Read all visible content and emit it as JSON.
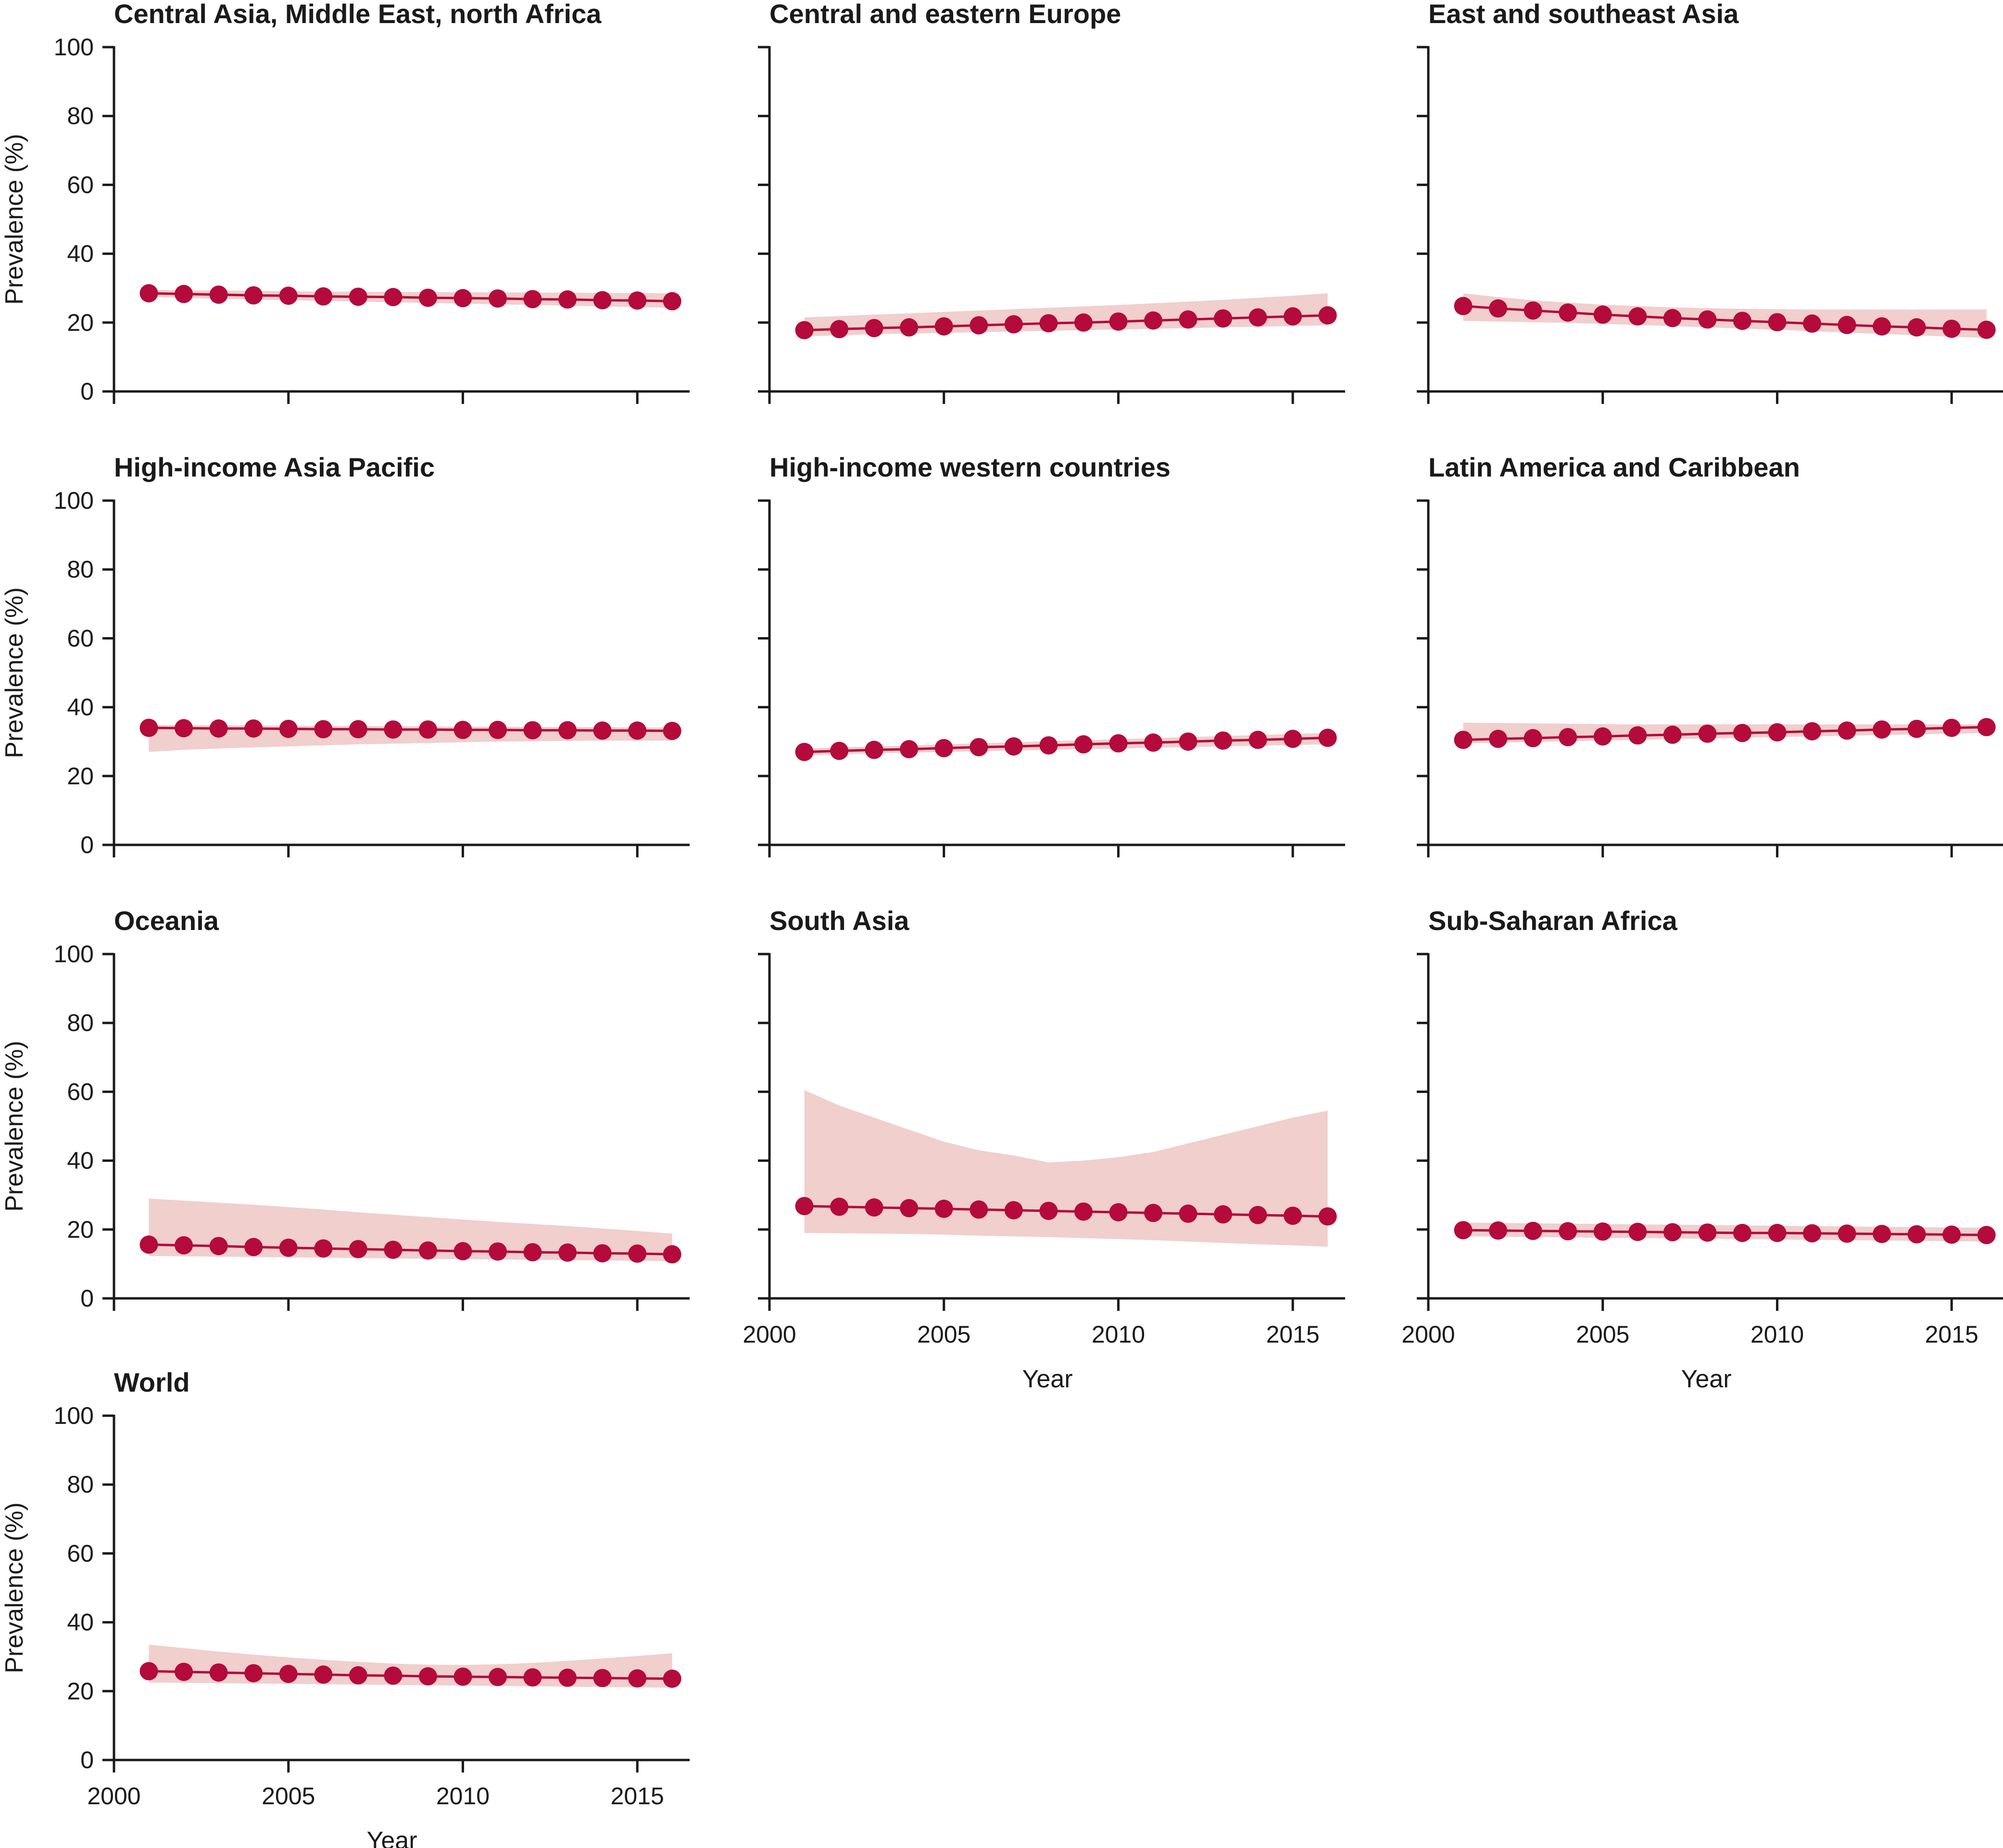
{
  "colors": {
    "series": "#b40a3c",
    "band": "#f0cfcd",
    "axis": "#1a1a1a"
  },
  "chart_data": [
    {
      "type": "line",
      "title": "Central Asia, Middle East, north Africa",
      "ylabel": "Prevalence (%)",
      "xlabel": "",
      "xlim": [
        2000,
        2016.5
      ],
      "ylim": [
        0,
        100
      ],
      "yticks": [
        "0",
        "20",
        "40",
        "60",
        "80",
        "100"
      ],
      "xticks": [],
      "x": [
        2001,
        2002,
        2003,
        2004,
        2005,
        2006,
        2007,
        2008,
        2009,
        2010,
        2011,
        2012,
        2013,
        2014,
        2015,
        2016
      ],
      "values": [
        28.5,
        28.3,
        28.1,
        27.9,
        27.8,
        27.6,
        27.5,
        27.4,
        27.2,
        27.1,
        27.0,
        26.8,
        26.7,
        26.5,
        26.4,
        26.2
      ],
      "band_upper": [
        29.5,
        29.4,
        29.3,
        29.2,
        29.1,
        29.0,
        29.0,
        28.9,
        28.9,
        28.8,
        28.8,
        28.7,
        28.7,
        28.6,
        28.6,
        28.5
      ],
      "band_lower": [
        27.5,
        27.2,
        26.9,
        26.7,
        26.5,
        26.3,
        26.1,
        25.9,
        25.7,
        25.5,
        25.3,
        25.1,
        24.9,
        24.7,
        24.5,
        24.3
      ]
    },
    {
      "type": "line",
      "title": "Central and eastern Europe",
      "ylabel": "",
      "xlabel": "",
      "xlim": [
        2000,
        2016.5
      ],
      "ylim": [
        0,
        100
      ],
      "yticks": [],
      "xticks": [],
      "x": [
        2001,
        2002,
        2003,
        2004,
        2005,
        2006,
        2007,
        2008,
        2009,
        2010,
        2011,
        2012,
        2013,
        2014,
        2015,
        2016
      ],
      "values": [
        17.8,
        18.1,
        18.4,
        18.6,
        18.9,
        19.2,
        19.5,
        19.8,
        20.0,
        20.3,
        20.6,
        20.9,
        21.2,
        21.5,
        21.8,
        22.1
      ],
      "band_upper": [
        21.5,
        21.9,
        22.3,
        22.7,
        23.1,
        23.5,
        23.9,
        24.3,
        24.7,
        25.1,
        25.6,
        26.1,
        26.6,
        27.2,
        27.8,
        28.5
      ],
      "band_lower": [
        16.0,
        16.3,
        16.6,
        16.8,
        17.0,
        17.2,
        17.4,
        17.6,
        17.8,
        18.0,
        18.2,
        18.4,
        18.6,
        18.8,
        19.0,
        19.2
      ]
    },
    {
      "type": "line",
      "title": "East and southeast Asia",
      "ylabel": "",
      "xlabel": "",
      "xlim": [
        2000,
        2016.5
      ],
      "ylim": [
        0,
        100
      ],
      "yticks": [],
      "xticks": [],
      "x": [
        2001,
        2002,
        2003,
        2004,
        2005,
        2006,
        2007,
        2008,
        2009,
        2010,
        2011,
        2012,
        2013,
        2014,
        2015,
        2016
      ],
      "values": [
        24.8,
        24.1,
        23.5,
        22.9,
        22.3,
        21.8,
        21.3,
        20.9,
        20.5,
        20.1,
        19.7,
        19.3,
        18.9,
        18.6,
        18.2,
        17.9
      ],
      "band_upper": [
        28.5,
        27.4,
        26.5,
        25.8,
        25.2,
        24.8,
        24.4,
        24.2,
        24.0,
        23.9,
        23.8,
        23.8,
        23.8,
        23.8,
        23.8,
        23.8
      ],
      "band_lower": [
        20.5,
        20.3,
        20.1,
        19.9,
        19.6,
        19.3,
        19.0,
        18.6,
        18.3,
        17.9,
        17.5,
        17.1,
        16.7,
        16.3,
        15.9,
        15.5
      ]
    },
    {
      "type": "line",
      "title": "High-income Asia Pacific",
      "ylabel": "Prevalence (%)",
      "xlabel": "",
      "xlim": [
        2000,
        2016.5
      ],
      "ylim": [
        0,
        100
      ],
      "yticks": [
        "0",
        "20",
        "40",
        "60",
        "80",
        "100"
      ],
      "xticks": [],
      "x": [
        2001,
        2002,
        2003,
        2004,
        2005,
        2006,
        2007,
        2008,
        2009,
        2010,
        2011,
        2012,
        2013,
        2014,
        2015,
        2016
      ],
      "values": [
        34.0,
        33.9,
        33.8,
        33.8,
        33.7,
        33.6,
        33.6,
        33.5,
        33.5,
        33.4,
        33.4,
        33.3,
        33.3,
        33.2,
        33.2,
        33.1
      ],
      "band_upper": [
        34.8,
        34.8,
        34.7,
        34.7,
        34.6,
        34.6,
        34.5,
        34.5,
        34.4,
        34.4,
        34.3,
        34.3,
        34.2,
        34.2,
        34.1,
        34.1
      ],
      "band_lower": [
        27.0,
        27.6,
        28.0,
        28.3,
        28.6,
        28.9,
        29.2,
        29.4,
        29.6,
        29.8,
        30.0,
        30.1,
        30.2,
        30.3,
        30.3,
        30.3
      ]
    },
    {
      "type": "line",
      "title": "High-income western countries",
      "ylabel": "",
      "xlabel": "",
      "xlim": [
        2000,
        2016.5
      ],
      "ylim": [
        0,
        100
      ],
      "yticks": [],
      "xticks": [],
      "x": [
        2001,
        2002,
        2003,
        2004,
        2005,
        2006,
        2007,
        2008,
        2009,
        2010,
        2011,
        2012,
        2013,
        2014,
        2015,
        2016
      ],
      "values": [
        27.0,
        27.3,
        27.6,
        27.8,
        28.1,
        28.4,
        28.6,
        28.9,
        29.2,
        29.5,
        29.7,
        30.0,
        30.3,
        30.5,
        30.8,
        31.1
      ],
      "band_upper": [
        28.0,
        28.3,
        28.6,
        28.9,
        29.2,
        29.5,
        29.8,
        30.1,
        30.4,
        30.7,
        31.0,
        31.3,
        31.6,
        31.9,
        32.2,
        32.5
      ],
      "band_lower": [
        26.0,
        26.3,
        26.6,
        26.8,
        27.0,
        27.2,
        27.4,
        27.6,
        27.8,
        28.0,
        28.2,
        28.4,
        28.6,
        28.8,
        29.0,
        29.2
      ]
    },
    {
      "type": "line",
      "title": "Latin America and Caribbean",
      "ylabel": "",
      "xlabel": "",
      "xlim": [
        2000,
        2016.5
      ],
      "ylim": [
        0,
        100
      ],
      "yticks": [],
      "xticks": [],
      "x": [
        2001,
        2002,
        2003,
        2004,
        2005,
        2006,
        2007,
        2008,
        2009,
        2010,
        2011,
        2012,
        2013,
        2014,
        2015,
        2016
      ],
      "values": [
        30.5,
        30.8,
        31.0,
        31.3,
        31.5,
        31.8,
        32.0,
        32.3,
        32.5,
        32.7,
        33.0,
        33.2,
        33.5,
        33.7,
        34.0,
        34.2
      ],
      "band_upper": [
        35.5,
        35.4,
        35.3,
        35.2,
        35.1,
        35.0,
        35.0,
        35.0,
        35.0,
        35.0,
        35.0,
        35.0,
        35.0,
        35.0,
        35.0,
        35.0
      ],
      "band_lower": [
        29.5,
        29.7,
        29.9,
        30.1,
        30.3,
        30.5,
        30.7,
        30.9,
        31.1,
        31.3,
        31.5,
        31.7,
        31.9,
        32.1,
        32.3,
        32.5
      ]
    },
    {
      "type": "line",
      "title": "Oceania",
      "ylabel": "Prevalence (%)",
      "xlabel": "",
      "xlim": [
        2000,
        2016.5
      ],
      "ylim": [
        0,
        100
      ],
      "yticks": [
        "0",
        "20",
        "40",
        "60",
        "80",
        "100"
      ],
      "xticks": [],
      "x": [
        2001,
        2002,
        2003,
        2004,
        2005,
        2006,
        2007,
        2008,
        2009,
        2010,
        2011,
        2012,
        2013,
        2014,
        2015,
        2016
      ],
      "values": [
        15.6,
        15.4,
        15.2,
        14.9,
        14.7,
        14.5,
        14.3,
        14.1,
        13.9,
        13.7,
        13.6,
        13.4,
        13.3,
        13.1,
        13.0,
        12.8
      ],
      "band_upper": [
        29.0,
        28.4,
        27.8,
        27.2,
        26.5,
        25.8,
        25.0,
        24.3,
        23.6,
        22.9,
        22.2,
        21.6,
        21.0,
        20.3,
        19.6,
        18.8
      ],
      "band_lower": [
        12.3,
        12.2,
        12.1,
        12.0,
        11.9,
        11.8,
        11.7,
        11.6,
        11.5,
        11.4,
        11.3,
        11.2,
        11.1,
        11.0,
        10.9,
        10.8
      ]
    },
    {
      "type": "line",
      "title": "South Asia",
      "ylabel": "",
      "xlabel": "Year",
      "xlim": [
        2000,
        2016.5
      ],
      "ylim": [
        0,
        100
      ],
      "yticks": [],
      "xticks": [
        "2000",
        "2005",
        "2010",
        "2015"
      ],
      "x": [
        2001,
        2002,
        2003,
        2004,
        2005,
        2006,
        2007,
        2008,
        2009,
        2010,
        2011,
        2012,
        2013,
        2014,
        2015,
        2016
      ],
      "values": [
        26.8,
        26.6,
        26.4,
        26.2,
        26.0,
        25.8,
        25.6,
        25.4,
        25.2,
        25.0,
        24.8,
        24.6,
        24.4,
        24.2,
        24.0,
        23.8
      ],
      "band_upper": [
        60.5,
        56.0,
        52.5,
        49.0,
        45.5,
        43.0,
        41.5,
        39.5,
        40.0,
        41.0,
        42.5,
        45.0,
        47.5,
        50.0,
        52.5,
        54.5
      ],
      "band_lower": [
        19.0,
        18.9,
        18.8,
        18.7,
        18.5,
        18.2,
        18.0,
        17.8,
        17.5,
        17.2,
        16.9,
        16.5,
        16.1,
        15.7,
        15.4,
        15.0
      ]
    },
    {
      "type": "line",
      "title": "Sub-Saharan Africa",
      "ylabel": "",
      "xlabel": "Year",
      "xlim": [
        2000,
        2016.5
      ],
      "ylim": [
        0,
        100
      ],
      "yticks": [],
      "xticks": [
        "2000",
        "2005",
        "2010",
        "2015"
      ],
      "x": [
        2001,
        2002,
        2003,
        2004,
        2005,
        2006,
        2007,
        2008,
        2009,
        2010,
        2011,
        2012,
        2013,
        2014,
        2015,
        2016
      ],
      "values": [
        19.8,
        19.7,
        19.6,
        19.5,
        19.4,
        19.3,
        19.2,
        19.1,
        19.0,
        19.0,
        18.9,
        18.8,
        18.7,
        18.6,
        18.5,
        18.4
      ],
      "band_upper": [
        22.0,
        21.9,
        21.8,
        21.7,
        21.6,
        21.5,
        21.4,
        21.3,
        21.2,
        21.1,
        21.0,
        20.9,
        20.8,
        20.7,
        20.6,
        20.5
      ],
      "band_lower": [
        18.0,
        17.9,
        17.8,
        17.7,
        17.6,
        17.5,
        17.4,
        17.3,
        17.2,
        17.1,
        17.0,
        16.9,
        16.8,
        16.7,
        16.6,
        16.5
      ]
    },
    {
      "type": "line",
      "title": "World",
      "ylabel": "Prevalence (%)",
      "xlabel": "Year",
      "xlim": [
        2000,
        2016.5
      ],
      "ylim": [
        0,
        100
      ],
      "yticks": [
        "0",
        "20",
        "40",
        "60",
        "80",
        "100"
      ],
      "xticks": [
        "2000",
        "2005",
        "2010",
        "2015"
      ],
      "x": [
        2001,
        2002,
        2003,
        2004,
        2005,
        2006,
        2007,
        2008,
        2009,
        2010,
        2011,
        2012,
        2013,
        2014,
        2015,
        2016
      ],
      "values": [
        25.8,
        25.6,
        25.4,
        25.2,
        25.0,
        24.8,
        24.6,
        24.5,
        24.3,
        24.2,
        24.1,
        24.0,
        23.9,
        23.8,
        23.7,
        23.6
      ],
      "band_upper": [
        33.5,
        32.5,
        31.5,
        30.6,
        29.8,
        29.1,
        28.5,
        28.0,
        27.7,
        27.6,
        27.8,
        28.2,
        28.8,
        29.5,
        30.2,
        31.0
      ],
      "band_lower": [
        22.5,
        22.4,
        22.3,
        22.2,
        22.1,
        22.0,
        21.9,
        21.8,
        21.7,
        21.6,
        21.5,
        21.4,
        21.3,
        21.2,
        21.1,
        21.0
      ]
    }
  ]
}
